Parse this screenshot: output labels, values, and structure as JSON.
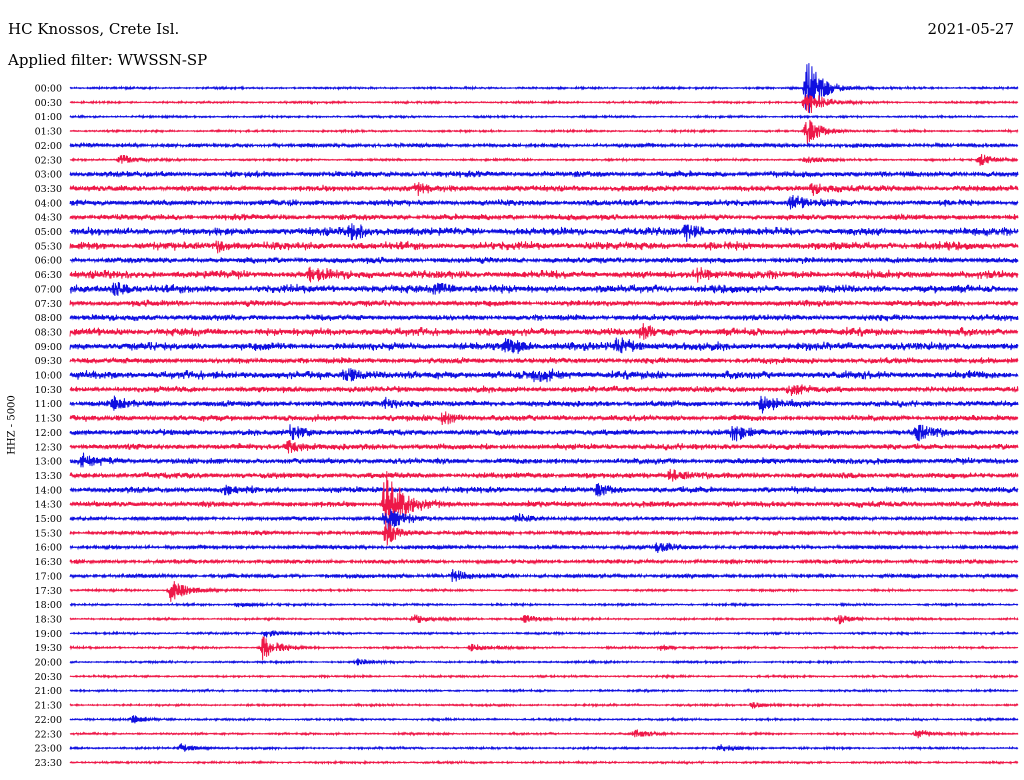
{
  "header": {
    "station": "HC Knossos, Crete Isl.",
    "date": "2021-05-27",
    "filter": "Applied filter: WWSSN-SP"
  },
  "channel_label": "HHZ - 5000",
  "colors": {
    "blue": "#1010e0",
    "red": "#ee1848"
  },
  "chart_data": {
    "type": "line",
    "title": "",
    "xlabel": "",
    "ylabel": "HHZ - 5000",
    "xlim": [
      0,
      30
    ],
    "x_unit": "minutes",
    "y_tick_labels": [
      "00:00",
      "00:30",
      "01:00",
      "01:30",
      "02:00",
      "02:30",
      "03:00",
      "03:30",
      "04:00",
      "04:30",
      "05:00",
      "05:30",
      "06:00",
      "06:30",
      "07:00",
      "07:30",
      "08:00",
      "08:30",
      "09:00",
      "09:30",
      "10:00",
      "10:30",
      "11:00",
      "11:30",
      "12:00",
      "12:30",
      "13:00",
      "13:30",
      "14:00",
      "14:30",
      "15:00",
      "15:30",
      "16:00",
      "16:30",
      "17:00",
      "17:30",
      "18:00",
      "18:30",
      "19:00",
      "19:30",
      "20:00",
      "20:30",
      "21:00",
      "21:30",
      "22:00",
      "22:30",
      "23:00",
      "23:30"
    ],
    "series_colors": [
      "#1010e0",
      "#ee1848"
    ],
    "noise_level": [
      1,
      1,
      1,
      1,
      2,
      1,
      3,
      3,
      3,
      3,
      4,
      4,
      3,
      4,
      4,
      3,
      3,
      4,
      4,
      3,
      4,
      3,
      3,
      3,
      3,
      3,
      3,
      3,
      3,
      3,
      2,
      2,
      2,
      2,
      2,
      1,
      1,
      1,
      1,
      1,
      1,
      1,
      1,
      1,
      1,
      1,
      1,
      1
    ],
    "events": [
      {
        "trace": "00:00",
        "minute": 23.3,
        "amplitude": 32
      },
      {
        "trace": "00:30",
        "minute": 23.3,
        "amplitude": 16
      },
      {
        "trace": "01:30",
        "minute": 23.3,
        "amplitude": 14
      },
      {
        "trace": "02:30",
        "minute": 1.6,
        "amplitude": 5
      },
      {
        "trace": "02:30",
        "minute": 23.3,
        "amplitude": 4
      },
      {
        "trace": "02:30",
        "minute": 28.8,
        "amplitude": 6
      },
      {
        "trace": "03:30",
        "minute": 11.0,
        "amplitude": 5
      },
      {
        "trace": "03:30",
        "minute": 23.5,
        "amplitude": 6
      },
      {
        "trace": "04:00",
        "minute": 22.8,
        "amplitude": 8
      },
      {
        "trace": "05:00",
        "minute": 8.9,
        "amplitude": 8
      },
      {
        "trace": "05:00",
        "minute": 19.5,
        "amplitude": 7
      },
      {
        "trace": "05:30",
        "minute": 4.7,
        "amplitude": 5
      },
      {
        "trace": "06:30",
        "minute": 7.6,
        "amplitude": 6
      },
      {
        "trace": "06:30",
        "minute": 19.8,
        "amplitude": 7
      },
      {
        "trace": "07:00",
        "minute": 1.4,
        "amplitude": 6
      },
      {
        "trace": "07:00",
        "minute": 11.6,
        "amplitude": 6
      },
      {
        "trace": "08:30",
        "minute": 18.1,
        "amplitude": 6
      },
      {
        "trace": "09:00",
        "minute": 13.8,
        "amplitude": 8
      },
      {
        "trace": "09:00",
        "minute": 17.3,
        "amplitude": 8
      },
      {
        "trace": "10:00",
        "minute": 8.7,
        "amplitude": 7
      },
      {
        "trace": "10:00",
        "minute": 14.7,
        "amplitude": 7
      },
      {
        "trace": "10:30",
        "minute": 22.8,
        "amplitude": 5
      },
      {
        "trace": "11:00",
        "minute": 1.4,
        "amplitude": 6
      },
      {
        "trace": "11:00",
        "minute": 10.0,
        "amplitude": 6
      },
      {
        "trace": "11:00",
        "minute": 21.9,
        "amplitude": 10
      },
      {
        "trace": "11:30",
        "minute": 11.8,
        "amplitude": 6
      },
      {
        "trace": "12:00",
        "minute": 7.0,
        "amplitude": 7
      },
      {
        "trace": "12:00",
        "minute": 21.0,
        "amplitude": 8
      },
      {
        "trace": "12:00",
        "minute": 26.8,
        "amplitude": 8
      },
      {
        "trace": "12:30",
        "minute": 6.9,
        "amplitude": 6
      },
      {
        "trace": "13:00",
        "minute": 0.4,
        "amplitude": 5
      },
      {
        "trace": "13:30",
        "minute": 19.0,
        "amplitude": 6
      },
      {
        "trace": "14:00",
        "minute": 4.9,
        "amplitude": 4
      },
      {
        "trace": "14:00",
        "minute": 16.7,
        "amplitude": 5
      },
      {
        "trace": "14:30",
        "minute": 10.0,
        "amplitude": 38
      },
      {
        "trace": "15:00",
        "minute": 10.0,
        "amplitude": 14
      },
      {
        "trace": "15:00",
        "minute": 14.1,
        "amplitude": 4
      },
      {
        "trace": "15:30",
        "minute": 10.0,
        "amplitude": 12
      },
      {
        "trace": "16:00",
        "minute": 18.6,
        "amplitude": 5
      },
      {
        "trace": "17:00",
        "minute": 12.1,
        "amplitude": 6
      },
      {
        "trace": "17:30",
        "minute": 3.2,
        "amplitude": 12
      },
      {
        "trace": "18:00",
        "minute": 5.3,
        "amplitude": 3
      },
      {
        "trace": "18:30",
        "minute": 10.9,
        "amplitude": 5
      },
      {
        "trace": "18:30",
        "minute": 14.4,
        "amplitude": 5
      },
      {
        "trace": "18:30",
        "minute": 24.3,
        "amplitude": 5
      },
      {
        "trace": "19:00",
        "minute": 6.2,
        "amplitude": 4
      },
      {
        "trace": "19:30",
        "minute": 12.7,
        "amplitude": 4
      },
      {
        "trace": "19:30",
        "minute": 18.7,
        "amplitude": 3
      },
      {
        "trace": "19:30",
        "minute": 6.1,
        "amplitude": 12
      },
      {
        "trace": "20:00",
        "minute": 9.1,
        "amplitude": 3
      },
      {
        "trace": "21:30",
        "minute": 21.6,
        "amplitude": 3
      },
      {
        "trace": "22:00",
        "minute": 2.0,
        "amplitude": 4
      },
      {
        "trace": "22:30",
        "minute": 17.9,
        "amplitude": 4
      },
      {
        "trace": "22:30",
        "minute": 26.8,
        "amplitude": 5
      },
      {
        "trace": "23:00",
        "minute": 3.5,
        "amplitude": 4
      },
      {
        "trace": "23:00",
        "minute": 20.6,
        "amplitude": 4
      }
    ]
  }
}
